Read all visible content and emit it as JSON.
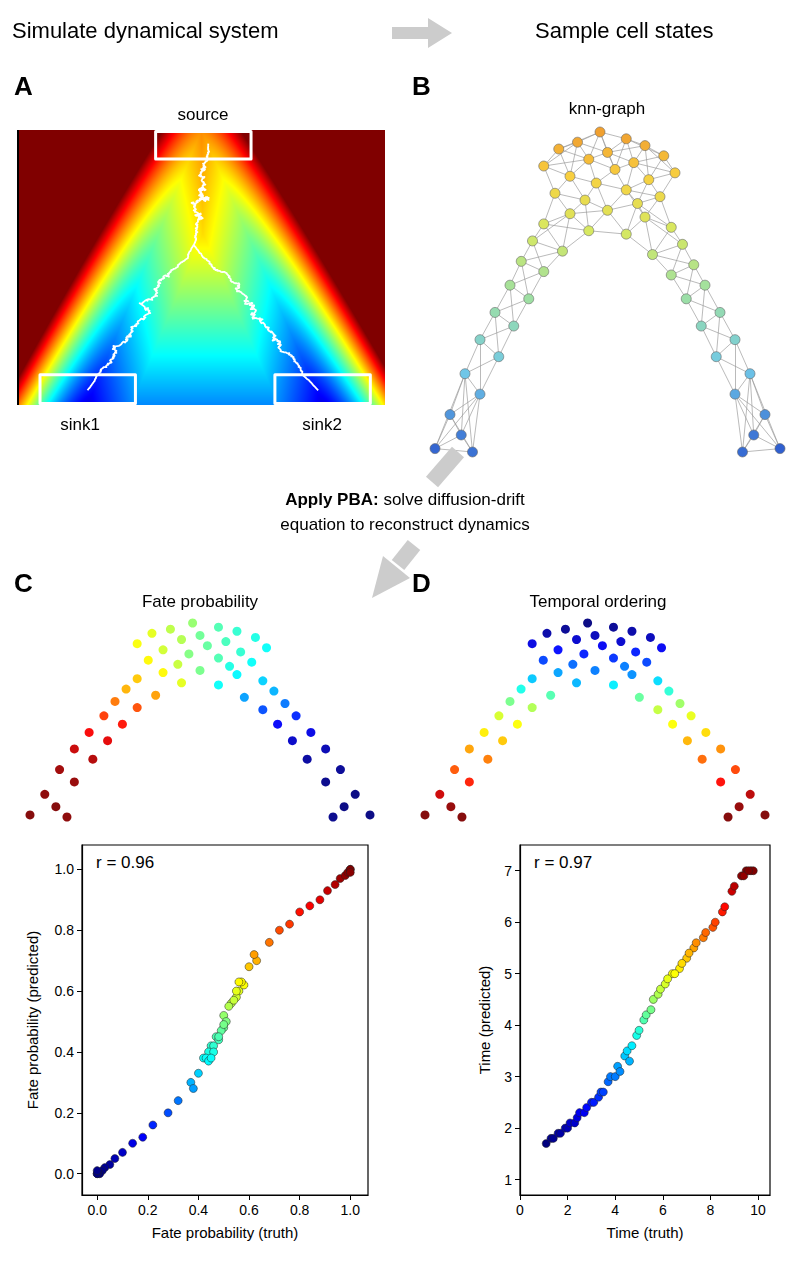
{
  "header": {
    "left": "Simulate dynamical system",
    "right": "Sample cell states"
  },
  "step": {
    "bold": "Apply PBA:",
    "line1": "solve diffusion-drift",
    "line2": "equation to reconstruct dynamics"
  },
  "panel_labels": [
    "A",
    "B",
    "C",
    "D"
  ],
  "panel_a": {
    "source": "source",
    "sinks": [
      "sink1",
      "sink2"
    ]
  },
  "chart_data": [
    {
      "type": "graph",
      "title": "knn-graph",
      "x": [
        48,
        55,
        42,
        60,
        37,
        50,
        65,
        45,
        57,
        33,
        52,
        68,
        40,
        61,
        47,
        55,
        36,
        64,
        44,
        58,
        50,
        40,
        60,
        33,
        67,
        45,
        55,
        30,
        70,
        38,
        62,
        27,
        73,
        33,
        67,
        24,
        29,
        20,
        25,
        16,
        21,
        12,
        16,
        8,
        11,
        4,
        14,
        76,
        71,
        80,
        75,
        84,
        79,
        88,
        84,
        92,
        89,
        96,
        86
      ],
      "y": [
        99,
        97,
        96,
        95,
        94,
        93,
        92,
        91,
        90,
        89,
        88,
        87,
        86,
        85,
        84,
        82,
        81,
        80,
        79,
        78,
        76,
        75,
        74,
        72,
        71,
        70,
        69,
        67,
        66,
        64,
        63,
        61,
        60,
        58,
        57,
        54,
        50,
        46,
        42,
        38,
        33,
        28,
        22,
        16,
        10,
        6,
        5,
        54,
        50,
        46,
        42,
        38,
        33,
        28,
        22,
        16,
        10,
        6,
        5
      ],
      "values": [
        1.1,
        1.3,
        1.4,
        1.6,
        1.7,
        1.9,
        2.0,
        2.1,
        2.3,
        2.4,
        2.5,
        2.7,
        2.8,
        3.0,
        3.1,
        3.3,
        3.4,
        3.5,
        3.7,
        3.8,
        4.0,
        4.1,
        4.2,
        4.4,
        4.5,
        4.6,
        4.7,
        4.9,
        5.0,
        5.2,
        5.3,
        5.5,
        5.6,
        5.8,
        5.9,
        6.1,
        6.4,
        6.7,
        7.0,
        7.3,
        7.7,
        8.1,
        8.5,
        8.9,
        9.3,
        9.7,
        9.5,
        6.2,
        6.5,
        6.8,
        7.1,
        7.4,
        7.8,
        8.2,
        8.6,
        9.0,
        9.4,
        9.8,
        9.6
      ],
      "tick_labels": false
    },
    {
      "type": "scatter",
      "title": "Fate probability",
      "x": [
        48,
        55,
        42,
        60,
        37,
        50,
        65,
        45,
        57,
        33,
        52,
        68,
        40,
        61,
        47,
        55,
        36,
        64,
        44,
        58,
        50,
        40,
        60,
        33,
        67,
        45,
        55,
        30,
        70,
        38,
        62,
        27,
        73,
        33,
        67,
        24,
        29,
        20,
        25,
        16,
        21,
        12,
        16,
        8,
        11,
        4,
        14,
        76,
        71,
        80,
        75,
        84,
        79,
        88,
        84,
        92,
        89,
        96,
        86
      ],
      "y": [
        99,
        97,
        96,
        95,
        94,
        93,
        92,
        91,
        90,
        89,
        88,
        87,
        86,
        85,
        84,
        82,
        81,
        80,
        79,
        78,
        76,
        75,
        74,
        72,
        71,
        70,
        69,
        67,
        66,
        64,
        63,
        61,
        60,
        58,
        57,
        54,
        50,
        46,
        42,
        38,
        33,
        28,
        22,
        16,
        10,
        6,
        5,
        54,
        50,
        46,
        42,
        38,
        33,
        28,
        22,
        16,
        10,
        6,
        5
      ],
      "values": [
        0.52,
        0.45,
        0.56,
        0.42,
        0.6,
        0.48,
        0.4,
        0.55,
        0.44,
        0.62,
        0.47,
        0.38,
        0.58,
        0.42,
        0.5,
        0.45,
        0.63,
        0.38,
        0.57,
        0.4,
        0.49,
        0.63,
        0.37,
        0.68,
        0.33,
        0.6,
        0.38,
        0.7,
        0.3,
        0.72,
        0.28,
        0.76,
        0.24,
        0.8,
        0.2,
        0.82,
        0.86,
        0.88,
        0.9,
        0.93,
        0.95,
        0.97,
        0.98,
        0.99,
        1.0,
        1.0,
        0.99,
        0.16,
        0.12,
        0.1,
        0.07,
        0.05,
        0.03,
        0.02,
        0.01,
        0.0,
        0.0,
        0.0,
        0.01
      ],
      "tick_labels": false
    },
    {
      "type": "scatter",
      "x": [
        0.5,
        0.47,
        0.53,
        0.45,
        0.56,
        0.5,
        0.44,
        0.52,
        0.48,
        0.58,
        0.49,
        0.42,
        0.55,
        0.46,
        0.51,
        0.48,
        0.57,
        0.43,
        0.54,
        0.46,
        0.5,
        0.56,
        0.44,
        0.6,
        0.4,
        0.55,
        0.45,
        0.63,
        0.37,
        0.62,
        0.38,
        0.68,
        0.32,
        0.72,
        0.28,
        0.76,
        0.8,
        0.84,
        0.88,
        0.91,
        0.94,
        0.96,
        0.98,
        0.99,
        1.0,
        1.0,
        1.0,
        0.22,
        0.18,
        0.14,
        0.1,
        0.07,
        0.05,
        0.03,
        0.02,
        0.01,
        0.0,
        0.0,
        0.0
      ],
      "values": [
        0.52,
        0.45,
        0.56,
        0.42,
        0.6,
        0.48,
        0.4,
        0.55,
        0.44,
        0.62,
        0.47,
        0.38,
        0.58,
        0.42,
        0.5,
        0.45,
        0.63,
        0.38,
        0.57,
        0.4,
        0.49,
        0.63,
        0.37,
        0.68,
        0.33,
        0.6,
        0.38,
        0.7,
        0.3,
        0.72,
        0.28,
        0.76,
        0.24,
        0.8,
        0.2,
        0.82,
        0.86,
        0.88,
        0.9,
        0.93,
        0.95,
        0.97,
        0.98,
        0.99,
        1.0,
        1.0,
        0.99,
        0.16,
        0.12,
        0.1,
        0.07,
        0.05,
        0.03,
        0.02,
        0.01,
        0.0,
        0.0,
        0.0,
        0.01
      ],
      "xlabel": "Fate probability (truth)",
      "ylabel": "Fate probability (predicted)",
      "xlim": [
        -0.06,
        1.07
      ],
      "ylim": [
        -0.07,
        1.08
      ],
      "xticks": [
        {
          "value": 0,
          "label": "0.0"
        },
        0.2,
        0.4,
        0.6,
        0.8,
        {
          "value": 1,
          "label": "1.0"
        }
      ],
      "yticks": [
        {
          "value": 0,
          "label": "0.0"
        },
        0.2,
        0.4,
        0.6,
        0.8,
        {
          "value": 1,
          "label": "1.0"
        }
      ],
      "annotation": "r = 0.96",
      "grid": false
    },
    {
      "type": "scatter",
      "title": "Temporal ordering",
      "x": [
        48,
        55,
        42,
        60,
        37,
        50,
        65,
        45,
        57,
        33,
        52,
        68,
        40,
        61,
        47,
        55,
        36,
        64,
        44,
        58,
        50,
        40,
        60,
        33,
        67,
        45,
        55,
        30,
        70,
        38,
        62,
        27,
        73,
        33,
        67,
        24,
        29,
        20,
        25,
        16,
        21,
        12,
        16,
        8,
        11,
        4,
        14,
        76,
        71,
        80,
        75,
        84,
        79,
        88,
        84,
        92,
        89,
        96,
        86
      ],
      "y": [
        99,
        97,
        96,
        95,
        94,
        93,
        92,
        91,
        90,
        89,
        88,
        87,
        86,
        85,
        84,
        82,
        81,
        80,
        79,
        78,
        76,
        75,
        74,
        72,
        71,
        70,
        69,
        67,
        66,
        64,
        63,
        61,
        60,
        58,
        57,
        54,
        50,
        46,
        42,
        38,
        33,
        28,
        22,
        16,
        10,
        6,
        5,
        54,
        50,
        46,
        42,
        38,
        33,
        28,
        22,
        16,
        10,
        6,
        5
      ],
      "values": [
        1.7,
        1.8,
        1.8,
        1.9,
        1.9,
        2.0,
        2.0,
        2.1,
        2.1,
        2.2,
        2.3,
        2.3,
        2.4,
        2.5,
        2.5,
        2.6,
        2.7,
        2.7,
        2.9,
        3.0,
        3.0,
        3.2,
        3.1,
        3.4,
        3.5,
        3.3,
        3.6,
        3.8,
        3.9,
        4.1,
        4.2,
        4.3,
        4.5,
        4.6,
        4.7,
        4.8,
        5.0,
        5.1,
        5.3,
        5.5,
        5.7,
        5.9,
        6.2,
        6.6,
        6.9,
        7.0,
        7.0,
        4.9,
        5.0,
        5.2,
        5.4,
        5.6,
        5.8,
        6.0,
        6.3,
        6.7,
        6.9,
        7.0,
        7.0
      ],
      "tick_labels": false
    },
    {
      "type": "scatter",
      "x": [
        1.1,
        1.3,
        1.4,
        1.6,
        1.7,
        1.9,
        2.0,
        2.1,
        2.3,
        2.4,
        2.5,
        2.7,
        2.8,
        3.0,
        3.1,
        3.3,
        3.4,
        3.5,
        3.7,
        3.8,
        4.0,
        4.1,
        4.2,
        4.4,
        4.5,
        4.6,
        4.7,
        4.9,
        5.0,
        5.2,
        5.3,
        5.5,
        5.6,
        5.8,
        5.9,
        6.1,
        6.4,
        6.7,
        7.0,
        7.3,
        7.7,
        8.1,
        8.5,
        8.9,
        9.3,
        9.7,
        9.5,
        6.2,
        6.5,
        6.8,
        7.1,
        7.4,
        7.8,
        8.2,
        8.6,
        9.0,
        9.4,
        9.8,
        9.6
      ],
      "values": [
        1.7,
        1.8,
        1.8,
        1.9,
        1.9,
        2.0,
        2.0,
        2.1,
        2.1,
        2.2,
        2.3,
        2.3,
        2.4,
        2.5,
        2.5,
        2.6,
        2.7,
        2.7,
        2.9,
        3.0,
        3.0,
        3.2,
        3.1,
        3.4,
        3.5,
        3.3,
        3.6,
        3.8,
        3.9,
        4.1,
        4.2,
        4.3,
        4.5,
        4.6,
        4.7,
        4.8,
        5.0,
        5.1,
        5.3,
        5.5,
        5.7,
        5.9,
        6.2,
        6.6,
        6.9,
        7.0,
        7.0,
        4.9,
        5.0,
        5.2,
        5.4,
        5.6,
        5.8,
        6.0,
        6.3,
        6.7,
        6.9,
        7.0,
        7.0
      ],
      "xlabel": "Time (truth)",
      "ylabel": "Time (predicted)",
      "xlim": [
        0,
        10.5
      ],
      "ylim": [
        0.7,
        7.5
      ],
      "xticks": [
        0,
        2,
        4,
        6,
        8,
        10
      ],
      "yticks": [
        1,
        2,
        3,
        4,
        5,
        6,
        7
      ],
      "annotation": "r = 0.97",
      "grid": false
    }
  ]
}
